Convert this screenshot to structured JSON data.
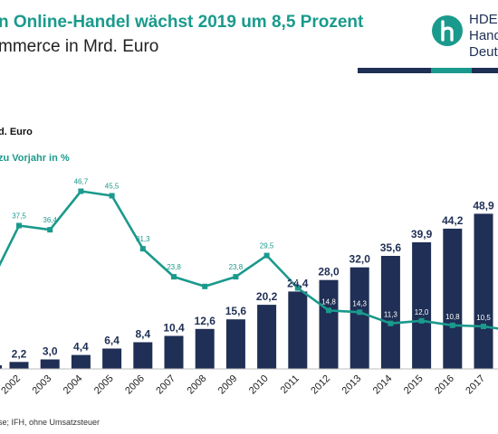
{
  "header": {
    "title": "n Online-Handel wächst 2019 um 8,5 Prozent",
    "subtitle": "mmerce in Mrd. Euro"
  },
  "logo": {
    "line1": "HDE",
    "line2": "Hand",
    "line3": "Deut"
  },
  "legend": {
    "bars": "d. Euro",
    "growth": "zu Vorjahr in %"
  },
  "source": "se;  IFH, ohne Umsatzsteuer",
  "colors": {
    "bar": "#1f2f55",
    "line": "#1a9a8c",
    "brand_teal": "#1a9a8c",
    "brand_navy": "#1f2f55"
  },
  "chart_data": {
    "type": "bar",
    "categories": [
      "2002",
      "2003",
      "2004",
      "2005",
      "2006",
      "2007",
      "2008",
      "2009",
      "2010",
      "2011",
      "2012",
      "2013",
      "2014",
      "2015",
      "2016",
      "2017",
      "2"
    ],
    "series": [
      {
        "type": "bar",
        "values": [
          2.2,
          3.0,
          4.4,
          6.4,
          8.4,
          10.4,
          12.6,
          15.6,
          20.2,
          24.4,
          28.0,
          32.0,
          35.6,
          39.9,
          44.2,
          48.9,
          null
        ],
        "labels": [
          "2,2",
          "3,0",
          "4,4",
          "6,4",
          "8,4",
          "10,4",
          "12,6",
          "15,6",
          "20,2",
          "24,4",
          "28,0",
          "32,0",
          "35,6",
          "39,9",
          "44,2",
          "48,9",
          ""
        ]
      },
      {
        "type": "line",
        "values": [
          37.5,
          36.4,
          46.7,
          45.5,
          31.3,
          23.8,
          21.2,
          23.8,
          29.5,
          20.8,
          14.8,
          14.3,
          11.3,
          12.0,
          10.8,
          10.5,
          null
        ],
        "labels": [
          "37,5",
          "36,4",
          "46,7",
          "45,5",
          "31,3",
          "23,8",
          "21,2",
          "23,8",
          "29,5",
          "20,8",
          "14,8",
          "14,3",
          "11,3",
          "12,0",
          "10,8",
          "10,5",
          ""
        ]
      }
    ]
  }
}
